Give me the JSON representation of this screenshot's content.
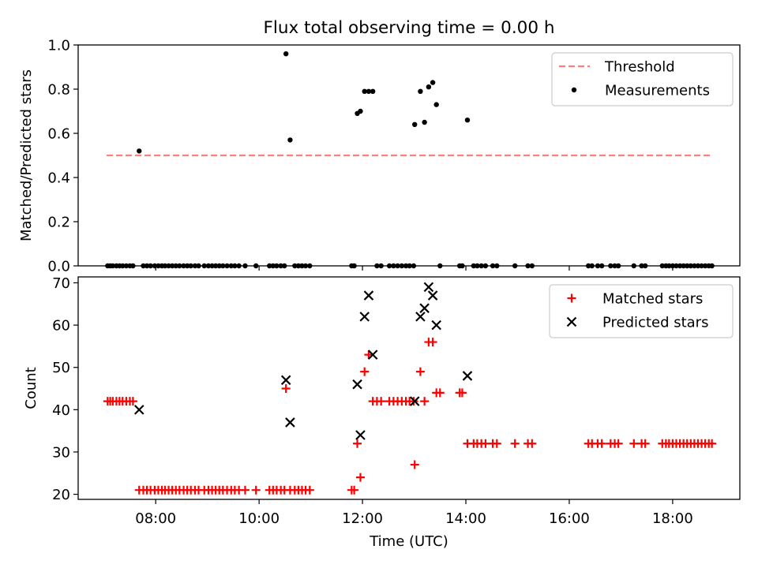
{
  "figure": {
    "title": "Flux total observing time = 0.00 h"
  },
  "chart_data": [
    {
      "type": "scatter",
      "xlabel": "",
      "ylabel": "Matched/Predicted stars",
      "xlim": [
        6.5,
        19.3
      ],
      "ylim": [
        0,
        1.0
      ],
      "yticks": [
        0.0,
        0.2,
        0.4,
        0.6,
        0.8,
        1.0
      ],
      "ytick_labels": [
        "0.0",
        "0.2",
        "0.4",
        "0.6",
        "0.8",
        "1.0"
      ],
      "legend_position": "top-right",
      "series": [
        {
          "name": "Threshold",
          "kind": "dashed-line",
          "color": "#ff7f7f",
          "x": [
            7.05,
            18.75
          ],
          "y": [
            0.5,
            0.5
          ]
        },
        {
          "name": "Measurements",
          "kind": "dot",
          "color": "#000000",
          "x": [
            7.07,
            7.12,
            7.17,
            7.24,
            7.3,
            7.36,
            7.43,
            7.5,
            7.56,
            7.68,
            7.76,
            7.83,
            7.9,
            7.98,
            8.05,
            8.12,
            8.18,
            8.25,
            8.32,
            8.39,
            8.46,
            8.54,
            8.61,
            8.68,
            8.76,
            8.83,
            8.94,
            9.02,
            9.09,
            9.16,
            9.23,
            9.3,
            9.38,
            9.46,
            9.53,
            9.61,
            9.73,
            9.94,
            10.2,
            10.27,
            10.34,
            10.42,
            10.49,
            10.52,
            10.6,
            10.69,
            10.76,
            10.83,
            10.9,
            10.98,
            11.79,
            11.84,
            11.9,
            11.96,
            12.04,
            12.12,
            12.2,
            12.28,
            12.36,
            12.52,
            12.6,
            12.68,
            12.76,
            12.84,
            12.91,
            12.99,
            13.01,
            13.12,
            13.2,
            13.28,
            13.36,
            13.43,
            13.5,
            13.88,
            13.93,
            14.03,
            14.15,
            14.22,
            14.3,
            14.38,
            14.52,
            14.6,
            14.95,
            15.2,
            15.28,
            16.37,
            16.44,
            16.55,
            16.63,
            16.8,
            16.88,
            16.95,
            17.25,
            17.4,
            17.47,
            17.8,
            17.87,
            17.93,
            18.0,
            18.07,
            18.14,
            18.21,
            18.28,
            18.35,
            18.42,
            18.49,
            18.56,
            18.63,
            18.7,
            18.76
          ],
          "y": [
            0,
            0,
            0,
            0,
            0,
            0,
            0,
            0,
            0,
            0.52,
            0,
            0,
            0,
            0,
            0,
            0,
            0,
            0,
            0,
            0,
            0,
            0,
            0,
            0,
            0,
            0,
            0,
            0,
            0,
            0,
            0,
            0,
            0,
            0,
            0,
            0,
            0,
            0,
            0,
            0,
            0,
            0,
            0,
            0.96,
            0.57,
            0,
            0,
            0,
            0,
            0,
            0,
            0,
            0.69,
            0.7,
            0.79,
            0.79,
            0.79,
            0,
            0,
            0,
            0,
            0,
            0,
            0,
            0,
            0,
            0.64,
            0.79,
            0.65,
            0.81,
            0.83,
            0.73,
            0,
            0,
            0,
            0.66,
            0,
            0,
            0,
            0,
            0,
            0,
            0,
            0,
            0,
            0,
            0,
            0,
            0,
            0,
            0,
            0,
            0,
            0,
            0,
            0,
            0,
            0,
            0,
            0,
            0,
            0,
            0,
            0,
            0,
            0,
            0,
            0,
            0,
            0
          ]
        }
      ]
    },
    {
      "type": "scatter",
      "xlabel": "Time (UTC)",
      "ylabel": "Count",
      "xlim": [
        6.5,
        19.3
      ],
      "ylim": [
        18.8,
        71.4
      ],
      "xticks": [
        8,
        10,
        12,
        14,
        16,
        18
      ],
      "xtick_labels": [
        "08:00",
        "10:00",
        "12:00",
        "14:00",
        "16:00",
        "18:00"
      ],
      "yticks": [
        20,
        30,
        40,
        50,
        60,
        70
      ],
      "ytick_labels": [
        "20",
        "30",
        "40",
        "50",
        "60",
        "70"
      ],
      "legend_position": "top-right",
      "series": [
        {
          "name": "Matched stars",
          "kind": "plus",
          "color": "#ff0000",
          "x": [
            7.07,
            7.12,
            7.17,
            7.24,
            7.3,
            7.36,
            7.43,
            7.5,
            7.56,
            7.68,
            7.76,
            7.83,
            7.9,
            7.98,
            8.05,
            8.12,
            8.18,
            8.25,
            8.32,
            8.39,
            8.46,
            8.54,
            8.61,
            8.68,
            8.76,
            8.83,
            8.94,
            9.02,
            9.09,
            9.16,
            9.23,
            9.3,
            9.38,
            9.46,
            9.53,
            9.61,
            9.73,
            9.94,
            10.2,
            10.27,
            10.34,
            10.42,
            10.49,
            10.52,
            10.6,
            10.69,
            10.76,
            10.83,
            10.9,
            10.98,
            11.79,
            11.84,
            11.9,
            11.96,
            12.04,
            12.12,
            12.2,
            12.28,
            12.36,
            12.52,
            12.6,
            12.68,
            12.76,
            12.84,
            12.91,
            12.99,
            13.01,
            13.12,
            13.2,
            13.28,
            13.36,
            13.43,
            13.5,
            13.88,
            13.93,
            14.03,
            14.15,
            14.22,
            14.3,
            14.38,
            14.52,
            14.6,
            14.95,
            15.2,
            15.28,
            16.37,
            16.44,
            16.55,
            16.63,
            16.8,
            16.88,
            16.95,
            17.25,
            17.4,
            17.47,
            17.8,
            17.87,
            17.93,
            18.0,
            18.07,
            18.14,
            18.21,
            18.28,
            18.35,
            18.42,
            18.49,
            18.56,
            18.63,
            18.7,
            18.76
          ],
          "y": [
            42,
            42,
            42,
            42,
            42,
            42,
            42,
            42,
            42,
            21,
            21,
            21,
            21,
            21,
            21,
            21,
            21,
            21,
            21,
            21,
            21,
            21,
            21,
            21,
            21,
            21,
            21,
            21,
            21,
            21,
            21,
            21,
            21,
            21,
            21,
            21,
            21,
            21,
            21,
            21,
            21,
            21,
            21,
            45,
            21,
            21,
            21,
            21,
            21,
            21,
            21,
            21,
            32,
            24,
            49,
            53,
            42,
            42,
            42,
            42,
            42,
            42,
            42,
            42,
            42,
            42,
            27,
            49,
            42,
            56,
            56,
            44,
            44,
            44,
            44,
            32,
            32,
            32,
            32,
            32,
            32,
            32,
            32,
            32,
            32,
            32,
            32,
            32,
            32,
            32,
            32,
            32,
            32,
            32,
            32,
            32,
            32,
            32,
            32,
            32,
            32,
            32,
            32,
            32,
            32,
            32,
            32,
            32,
            32,
            32
          ]
        },
        {
          "name": "Predicted stars",
          "kind": "x",
          "color": "#000000",
          "x": [
            7.68,
            10.52,
            10.6,
            11.9,
            11.96,
            12.04,
            12.12,
            12.2,
            13.01,
            13.12,
            13.2,
            13.28,
            13.36,
            13.43,
            14.03
          ],
          "y": [
            40,
            47,
            37,
            46,
            34,
            62,
            67,
            53,
            42,
            62,
            64,
            69,
            67,
            60,
            48
          ]
        }
      ]
    }
  ]
}
